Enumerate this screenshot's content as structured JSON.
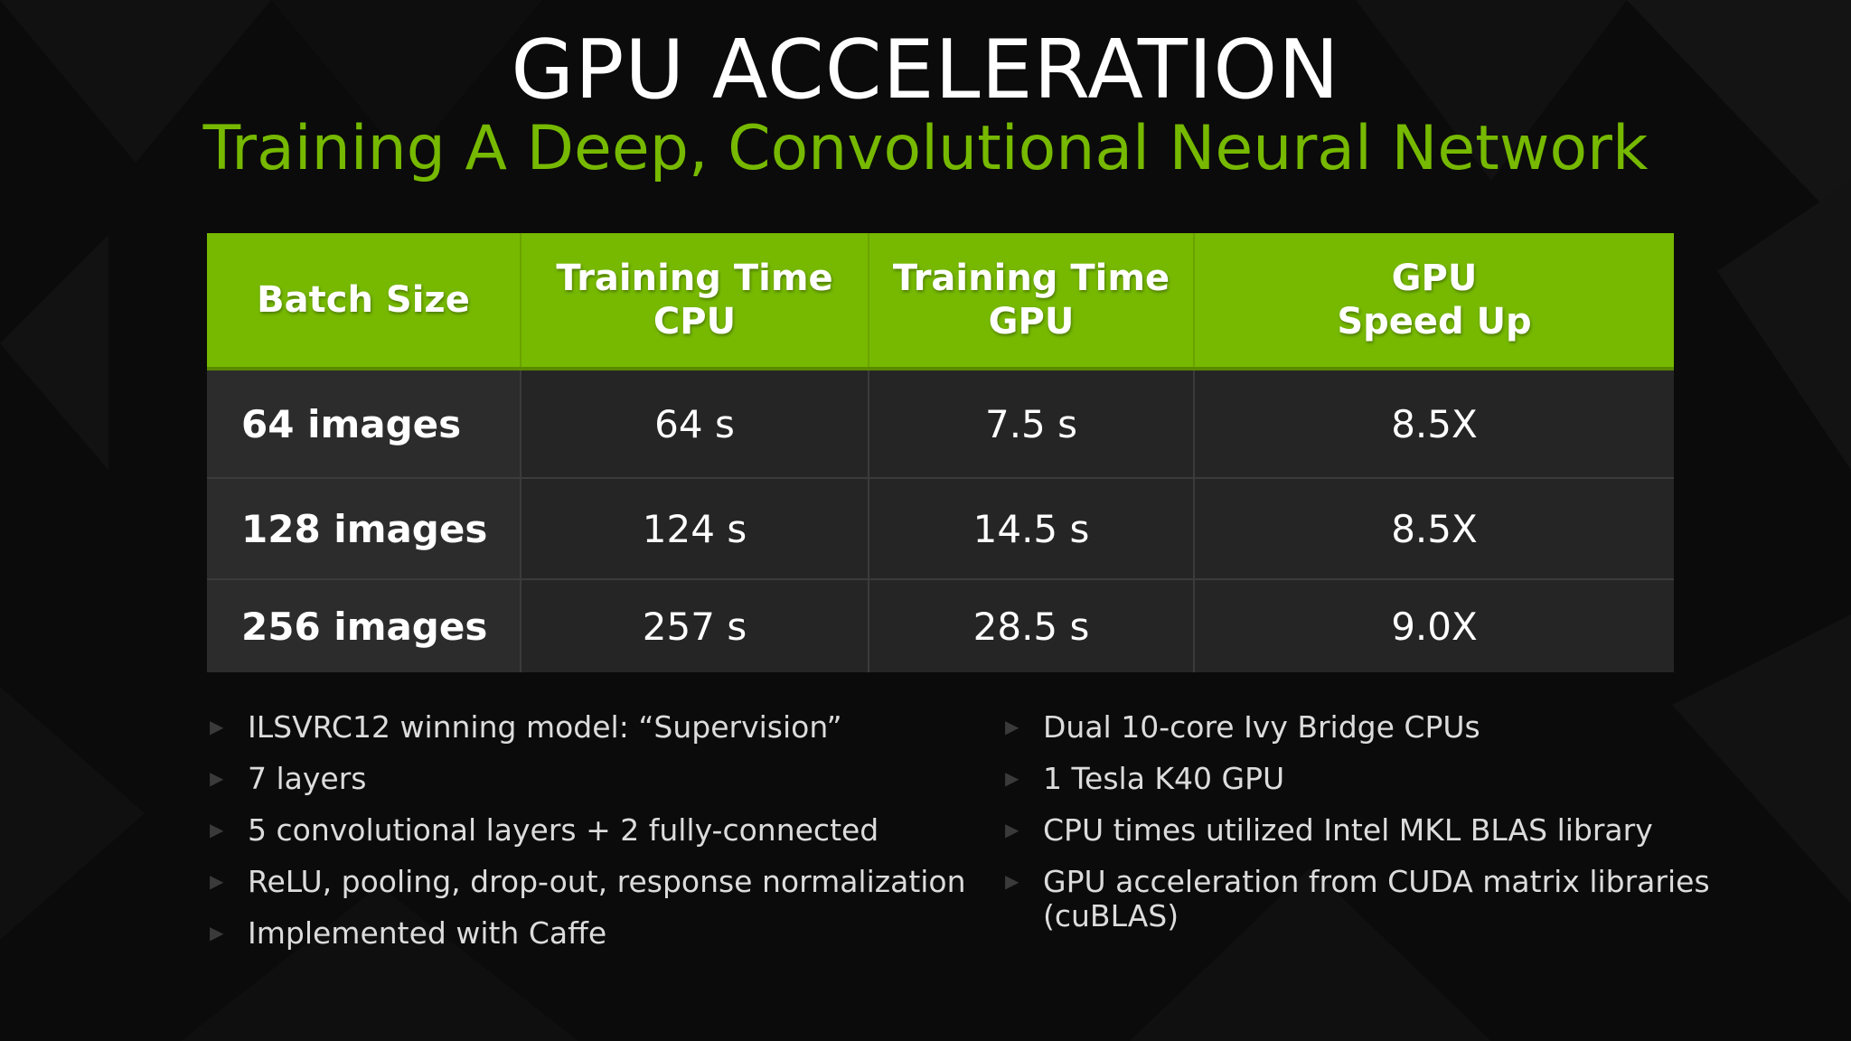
{
  "title": "GPU ACCELERATION",
  "subtitle": "Training A Deep, Convolutional Neural Network",
  "table": {
    "headers": [
      [
        "Batch Size"
      ],
      [
        "Training Time",
        "CPU"
      ],
      [
        "Training Time",
        "GPU"
      ],
      [
        "GPU",
        "Speed Up"
      ]
    ],
    "rows": [
      [
        "64 images",
        "64 s",
        "7.5 s",
        "8.5X"
      ],
      [
        "128 images",
        "124 s",
        "14.5 s",
        "8.5X"
      ],
      [
        "256 images",
        "257 s",
        "28.5 s",
        "9.0X"
      ]
    ]
  },
  "bullets_left": [
    "ILSVRC12 winning model: “Supervision”",
    "7 layers",
    "5 convolutional layers + 2 fully-connected",
    "ReLU, pooling, drop-out, response normalization",
    "Implemented with Caffe"
  ],
  "bullets_right": [
    "Dual 10-core Ivy Bridge CPUs",
    "1 Tesla K40 GPU",
    "CPU times utilized Intel MKL BLAS library",
    "GPU acceleration from CUDA matrix libraries (cuBLAS)"
  ],
  "icons": {
    "bullet": "triangle-bullet-icon"
  },
  "colors": {
    "accent": "#76b900",
    "background": "#0b0b0b",
    "table_body": "#252525",
    "text": "#ffffff"
  }
}
